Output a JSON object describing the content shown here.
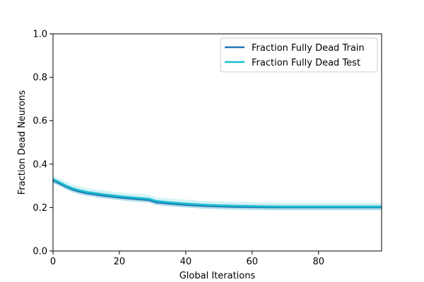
{
  "chart_data": {
    "type": "line",
    "title": "",
    "xlabel": "Global Iterations",
    "ylabel": "Fraction Dead Neurons",
    "xlim": [
      0,
      99
    ],
    "ylim": [
      0,
      1.0
    ],
    "x_ticks": [
      "0",
      "20",
      "40",
      "60",
      "80"
    ],
    "y_ticks": [
      "0.0",
      "0.2",
      "0.4",
      "0.6",
      "0.8",
      "1.0"
    ],
    "grid": false,
    "legend_position": "top-right",
    "x": [
      0,
      2,
      4,
      6,
      8,
      10,
      15,
      20,
      25,
      29,
      31,
      35,
      40,
      45,
      50,
      55,
      60,
      65,
      70,
      80,
      90,
      99
    ],
    "series": [
      {
        "name": "Fraction Fully Dead Train",
        "color": "#1f77b4",
        "values": [
          0.325,
          0.31,
          0.295,
          0.282,
          0.273,
          0.266,
          0.255,
          0.246,
          0.239,
          0.234,
          0.224,
          0.218,
          0.212,
          0.208,
          0.205,
          0.203,
          0.202,
          0.201,
          0.201,
          0.201,
          0.201,
          0.201
        ],
        "band": 0.012
      },
      {
        "name": "Fraction Fully Dead Test",
        "color": "#17becf",
        "values": [
          0.33,
          0.316,
          0.3,
          0.288,
          0.279,
          0.272,
          0.261,
          0.252,
          0.245,
          0.24,
          0.23,
          0.224,
          0.218,
          0.213,
          0.21,
          0.208,
          0.206,
          0.205,
          0.204,
          0.204,
          0.204,
          0.204
        ],
        "band": 0.018
      }
    ]
  }
}
